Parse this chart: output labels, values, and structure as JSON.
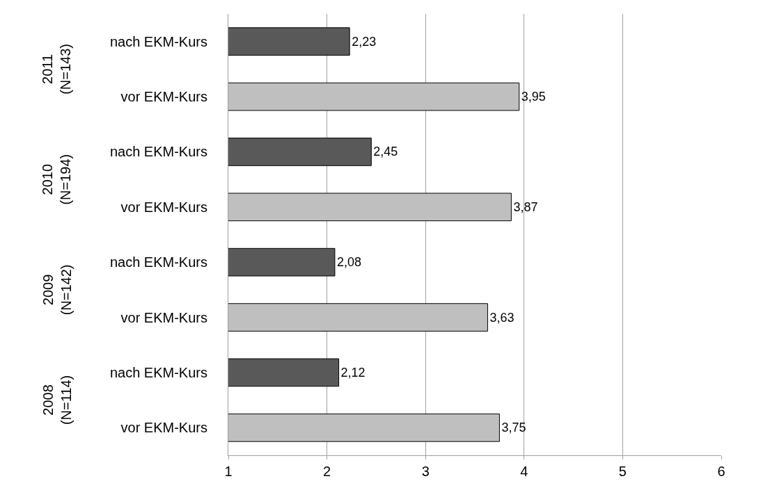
{
  "chart_data": {
    "type": "bar",
    "orientation": "horizontal",
    "categories": [
      "nach EKM-Kurs",
      "vor EKM-Kurs",
      "nach EKM-Kurs",
      "vor EKM-Kurs",
      "nach EKM-Kurs",
      "vor EKM-Kurs",
      "nach EKM-Kurs",
      "vor EKM-Kurs"
    ],
    "values": [
      2.23,
      3.95,
      2.45,
      3.87,
      2.08,
      3.63,
      2.12,
      3.75
    ],
    "value_labels": [
      "2,23",
      "3,95",
      "2,45",
      "3,87",
      "2,08",
      "3,63",
      "2,12",
      "3,75"
    ],
    "colors": [
      "#595959",
      "#bfbfbf",
      "#595959",
      "#bfbfbf",
      "#595959",
      "#bfbfbf",
      "#595959",
      "#bfbfbf"
    ],
    "annotations": [
      "2011\n(N=143)",
      "2010\n(N=194)",
      "2009\n(N=142)",
      "2008\n(N=114)"
    ],
    "xlim": [
      1,
      6
    ],
    "xticks": [
      1,
      2,
      3,
      4,
      5,
      6
    ],
    "grid": "x"
  }
}
